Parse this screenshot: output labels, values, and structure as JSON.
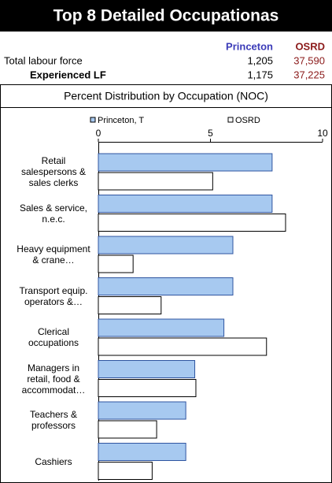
{
  "table": {
    "title": "Top 8 Detailed Occupationas",
    "columns": [
      "Princeton",
      "OSRD"
    ],
    "rows": [
      [
        "Total labour force",
        "1,205",
        "37,590"
      ],
      [
        "Experienced LF",
        "1,175",
        "37,225"
      ]
    ]
  },
  "chart_data": {
    "type": "hbar",
    "title": "Percent Distribution by Occupation (NOC)",
    "categories": [
      "Retail salespersons & sales clerks",
      "Sales & service, n.e.c.",
      "Heavy equipment & crane…",
      "Transport equip. operators &…",
      "Clerical occupations",
      "Managers in retail, food & accommodat…",
      "Teachers & professors",
      "Cashiers"
    ],
    "series": [
      {
        "name": "Princeton, T",
        "color": "#a7c9f0",
        "values": [
          7.75,
          7.75,
          6.0,
          6.0,
          5.6,
          4.3,
          3.9,
          3.9
        ]
      },
      {
        "name": "OSRD",
        "color": "#ffffff",
        "values": [
          5.1,
          8.35,
          1.55,
          2.8,
          7.5,
          4.35,
          2.6,
          2.4
        ]
      }
    ],
    "xlim": [
      0,
      10
    ],
    "xticks": [
      0,
      5,
      10
    ]
  }
}
